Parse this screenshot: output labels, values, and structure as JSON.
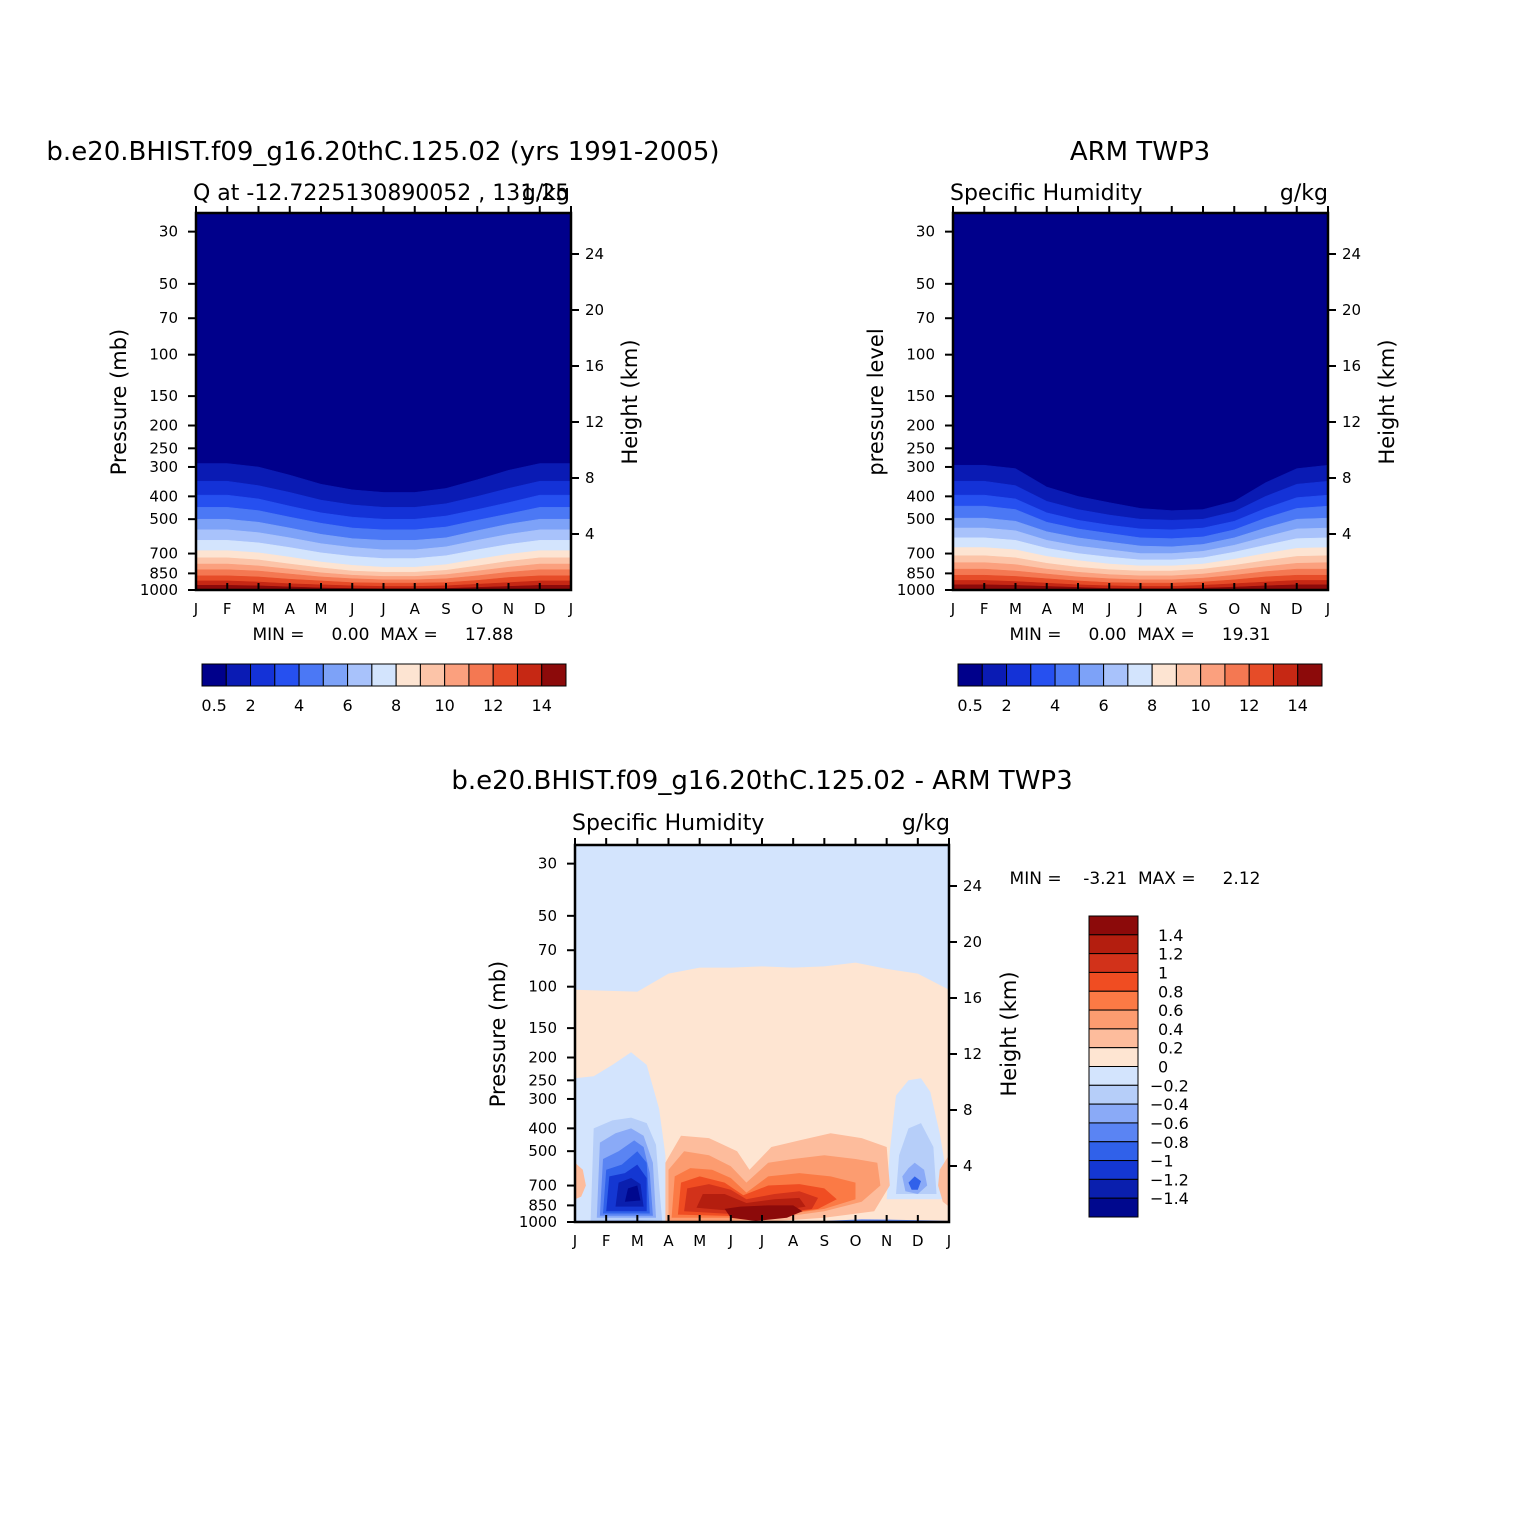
{
  "chart_data": [
    {
      "type": "heatmap",
      "title": "b.e20.BHIST.f09_g16.20thC.125.02 (yrs 1991-2005)",
      "subtitle_left": "Q at -12.7225130890052 , 131.25",
      "subtitle_right": "g/kg",
      "ylabel": "Pressure (mb)",
      "ylabel_right": "Height (km)",
      "x_ticks": [
        "J",
        "F",
        "M",
        "A",
        "M",
        "J",
        "J",
        "A",
        "S",
        "O",
        "N",
        "D",
        "J"
      ],
      "y_ticks": [
        "30",
        "50",
        "70",
        "100",
        "150",
        "200",
        "250",
        "300",
        "400",
        "500",
        "700",
        "850",
        "1000"
      ],
      "y_ticks_right": [
        "24",
        "20",
        "16",
        "12",
        "8",
        "4"
      ],
      "stats": "MIN =     0.00  MAX =     17.88",
      "colorbar_labels": [
        "0.5",
        "2",
        "4",
        "6",
        "8",
        "10",
        "12",
        "14"
      ],
      "palette": [
        "#00008b",
        "#0a1bb4",
        "#1432d7",
        "#2650f0",
        "#4b78f5",
        "#7da2f8",
        "#a8c2fb",
        "#d3e4fd",
        "#fde4d2",
        "#fcc4a8",
        "#fba07e",
        "#f47852",
        "#e64c28",
        "#c62814",
        "#8c0a0a"
      ],
      "contour_boundaries_hPa": [
        [
          290,
          290,
          300,
          325,
          355,
          375,
          385,
          385,
          370,
          340,
          310,
          290,
          290
        ],
        [
          345,
          345,
          360,
          385,
          415,
          435,
          445,
          445,
          430,
          400,
          370,
          345,
          345
        ],
        [
          395,
          395,
          410,
          440,
          470,
          490,
          500,
          500,
          485,
          455,
          425,
          395,
          395
        ],
        [
          445,
          445,
          460,
          490,
          520,
          545,
          555,
          555,
          540,
          505,
          475,
          445,
          445
        ],
        [
          500,
          500,
          515,
          545,
          580,
          605,
          615,
          615,
          600,
          560,
          525,
          500,
          500
        ],
        [
          555,
          555,
          570,
          600,
          635,
          660,
          675,
          675,
          655,
          615,
          580,
          555,
          555
        ],
        [
          615,
          615,
          630,
          660,
          695,
          720,
          735,
          735,
          715,
          675,
          640,
          615,
          615
        ],
        [
          680,
          680,
          695,
          725,
          760,
          785,
          800,
          800,
          780,
          740,
          705,
          680,
          680
        ],
        [
          730,
          730,
          745,
          775,
          805,
          830,
          840,
          840,
          825,
          790,
          755,
          730,
          730
        ],
        [
          775,
          775,
          790,
          815,
          845,
          865,
          875,
          875,
          860,
          830,
          800,
          775,
          775
        ],
        [
          820,
          820,
          830,
          855,
          880,
          895,
          905,
          905,
          895,
          870,
          840,
          820,
          820
        ],
        [
          870,
          870,
          880,
          900,
          915,
          930,
          935,
          935,
          930,
          910,
          885,
          870,
          870
        ],
        [
          915,
          915,
          925,
          940,
          950,
          960,
          965,
          965,
          960,
          945,
          930,
          915,
          915
        ],
        [
          955,
          955,
          960,
          970,
          980,
          985,
          988,
          988,
          985,
          975,
          965,
          955,
          955
        ]
      ]
    },
    {
      "type": "heatmap",
      "title": "ARM TWP3",
      "subtitle_left": "Specific Humidity",
      "subtitle_right": "g/kg",
      "ylabel": "pressure level",
      "ylabel_right": "Height (km)",
      "x_ticks": [
        "J",
        "F",
        "M",
        "A",
        "M",
        "J",
        "J",
        "A",
        "S",
        "O",
        "N",
        "D",
        "J"
      ],
      "y_ticks": [
        "30",
        "50",
        "70",
        "100",
        "150",
        "200",
        "250",
        "300",
        "400",
        "500",
        "700",
        "850",
        "1000"
      ],
      "y_ticks_right": [
        "24",
        "20",
        "16",
        "12",
        "8",
        "4"
      ],
      "stats": "MIN =     0.00  MAX =     19.31",
      "colorbar_labels": [
        "0.5",
        "2",
        "4",
        "6",
        "8",
        "10",
        "12",
        "14"
      ],
      "palette": [
        "#00008b",
        "#0a1bb4",
        "#1432d7",
        "#2650f0",
        "#4b78f5",
        "#7da2f8",
        "#a8c2fb",
        "#d3e4fd",
        "#fde4d2",
        "#fcc4a8",
        "#fba07e",
        "#f47852",
        "#e64c28",
        "#c62814",
        "#8c0a0a"
      ],
      "contour_boundaries_hPa": [
        [
          295,
          295,
          305,
          365,
          400,
          425,
          450,
          460,
          455,
          420,
          350,
          305,
          295
        ],
        [
          345,
          345,
          360,
          420,
          455,
          480,
          500,
          505,
          500,
          465,
          400,
          355,
          345
        ],
        [
          395,
          395,
          410,
          470,
          505,
          530,
          550,
          555,
          545,
          510,
          450,
          405,
          395
        ],
        [
          440,
          440,
          455,
          515,
          550,
          575,
          600,
          605,
          595,
          555,
          495,
          450,
          440
        ],
        [
          495,
          495,
          510,
          565,
          600,
          625,
          650,
          655,
          640,
          600,
          545,
          500,
          495
        ],
        [
          545,
          545,
          560,
          615,
          650,
          675,
          700,
          700,
          685,
          645,
          595,
          550,
          545
        ],
        [
          600,
          600,
          615,
          665,
          700,
          725,
          745,
          745,
          730,
          690,
          645,
          605,
          600
        ],
        [
          660,
          660,
          675,
          720,
          750,
          775,
          790,
          790,
          775,
          740,
          700,
          665,
          660
        ],
        [
          715,
          715,
          730,
          770,
          800,
          820,
          830,
          830,
          815,
          785,
          750,
          720,
          715
        ],
        [
          765,
          765,
          780,
          815,
          840,
          860,
          870,
          870,
          855,
          825,
          795,
          770,
          765
        ],
        [
          815,
          815,
          830,
          855,
          880,
          895,
          905,
          905,
          890,
          865,
          835,
          815,
          815
        ],
        [
          865,
          865,
          875,
          895,
          915,
          930,
          935,
          935,
          925,
          905,
          880,
          865,
          865
        ],
        [
          910,
          910,
          920,
          935,
          950,
          960,
          965,
          965,
          955,
          940,
          925,
          910,
          910
        ],
        [
          950,
          950,
          955,
          965,
          975,
          985,
          988,
          988,
          982,
          972,
          960,
          950,
          950
        ]
      ]
    },
    {
      "type": "heatmap",
      "title": "b.e20.BHIST.f09_g16.20thC.125.02 - ARM TWP3",
      "subtitle_left": "Specific Humidity",
      "subtitle_right": "g/kg",
      "ylabel": "Pressure (mb)",
      "ylabel_right": "Height (km)",
      "x_ticks": [
        "J",
        "F",
        "M",
        "A",
        "M",
        "J",
        "J",
        "A",
        "S",
        "O",
        "N",
        "D",
        "J"
      ],
      "y_ticks": [
        "30",
        "50",
        "70",
        "100",
        "150",
        "200",
        "250",
        "300",
        "400",
        "500",
        "700",
        "850",
        "1000"
      ],
      "y_ticks_right": [
        "24",
        "20",
        "16",
        "12",
        "8",
        "4"
      ],
      "stats": "MIN =    -3.21  MAX =     2.12",
      "colorbar_labels": [
        "1.4",
        "1.2",
        "1",
        "0.8",
        "0.6",
        "0.4",
        "0.2",
        "0",
        "-0.2",
        "-0.4",
        "-0.6",
        "-0.8",
        "-1",
        "-1.2",
        "-1.4"
      ],
      "palette_top_to_bottom": [
        "#8c0a0a",
        "#b41e0f",
        "#d2321a",
        "#f04d22",
        "#fb7a45",
        "#fc9c70",
        "#fdbc9c",
        "#fee5d2",
        "#d3e4fd",
        "#b6cef9",
        "#8aaaf7",
        "#5a84f3",
        "#3061ea",
        "#1437d2",
        "#0a1fae",
        "#00088e"
      ],
      "zero_line_upper_hPa": [
        103,
        104,
        105,
        88,
        83,
        83,
        82,
        83,
        82,
        79,
        84,
        88,
        103
      ],
      "features": [
        {
          "kind": "blob",
          "value": -1.2,
          "month": 2.1,
          "pressure_hPa": 650
        },
        {
          "kind": "blob",
          "value": -0.8,
          "month": 10.7,
          "pressure_hPa": 700
        },
        {
          "kind": "blob",
          "value": 1.4,
          "month": 6.2,
          "pressure_hPa": 880
        },
        {
          "kind": "blob",
          "value": 1.0,
          "month": 4.3,
          "pressure_hPa": 740
        },
        {
          "kind": "band",
          "value": -1.4,
          "month_range": [
            8.5,
            11.5
          ],
          "pressure_hPa": 990
        }
      ]
    }
  ]
}
